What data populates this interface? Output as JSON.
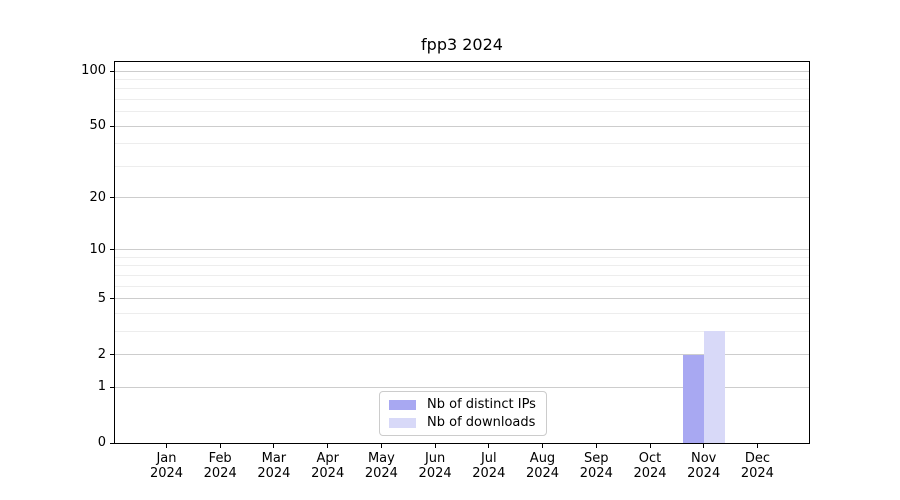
{
  "chart_data": {
    "type": "bar",
    "title": "fpp3 2024",
    "categories": [
      "Jan 2024",
      "Feb 2024",
      "Mar 2024",
      "Apr 2024",
      "May 2024",
      "Jun 2024",
      "Jul 2024",
      "Aug 2024",
      "Sep 2024",
      "Oct 2024",
      "Nov 2024",
      "Dec 2024"
    ],
    "x_tick_month_labels": [
      "Jan",
      "Feb",
      "Mar",
      "Apr",
      "May",
      "Jun",
      "Jul",
      "Aug",
      "Sep",
      "Oct",
      "Nov",
      "Dec"
    ],
    "x_tick_year_label": "2024",
    "series": [
      {
        "name": "Nb of distinct IPs",
        "color": "#a8a8f2",
        "values": [
          0,
          0,
          0,
          0,
          0,
          0,
          0,
          0,
          0,
          0,
          2,
          0
        ]
      },
      {
        "name": "Nb of downloads",
        "color": "#d8d9f8",
        "values": [
          0,
          0,
          0,
          0,
          0,
          0,
          0,
          0,
          0,
          0,
          3,
          0
        ]
      }
    ],
    "xlabel": "",
    "ylabel": "",
    "yscale": "log1p",
    "ylim": [
      0,
      112
    ],
    "y_major_ticks": [
      0,
      1,
      2,
      5,
      10,
      20,
      50,
      100
    ],
    "y_minor_gridlines": [
      3,
      4,
      6,
      7,
      8,
      9,
      30,
      40,
      60,
      70,
      80,
      90
    ],
    "grid": true,
    "legend_position": "lower center",
    "colors": {
      "grid_major": "#cdcdcd",
      "grid_minor": "#ededed",
      "spine": "#000000",
      "text": "#000000",
      "legend_border": "#cccccc",
      "legend_background": "#ffffff"
    }
  }
}
